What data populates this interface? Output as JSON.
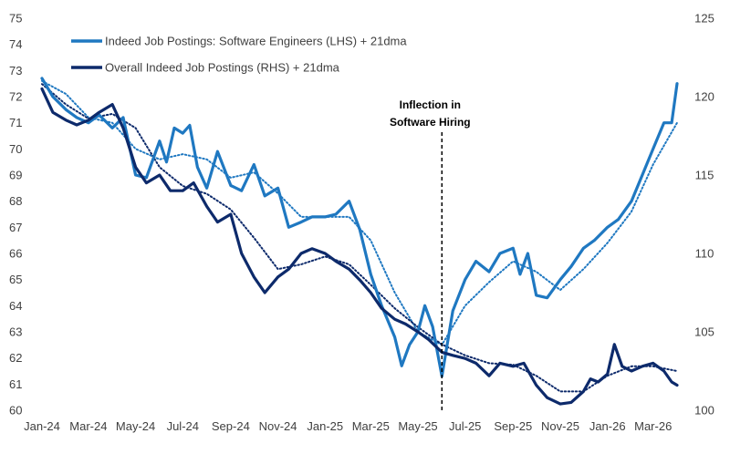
{
  "chart_data": {
    "type": "line",
    "title": "",
    "xlabel": "",
    "ylabel_left": "",
    "ylabel_right": "",
    "x_ticks": [
      "Jan-24",
      "Mar-24",
      "May-24",
      "Jul-24",
      "Sep-24",
      "Nov-24",
      "Jan-25",
      "Mar-25",
      "May-25",
      "Jul-25",
      "Sep-25",
      "Nov-25",
      "Jan-26",
      "Mar-26"
    ],
    "ylim_left": [
      60,
      75
    ],
    "yticks_left": [
      "60",
      "61",
      "62",
      "63",
      "64",
      "65",
      "66",
      "67",
      "68",
      "69",
      "70",
      "71",
      "72",
      "73",
      "74",
      "75"
    ],
    "ylim_right": [
      100,
      125
    ],
    "yticks_right": [
      "100",
      "105",
      "110",
      "115",
      "120",
      "125"
    ],
    "grid": false,
    "legend_position": "top-left",
    "annotation": {
      "lines": [
        "Inflection in",
        "Software Hiring"
      ],
      "x": "2025-06-01"
    },
    "series": [
      {
        "name": "Indeed Job Postings: Software Engineers (LHS) + 21dma",
        "axis": "left",
        "color": "#1f78c1",
        "x": [
          "2024-01-01",
          "2024-01-15",
          "2024-02-01",
          "2024-02-15",
          "2024-03-01",
          "2024-03-15",
          "2024-04-01",
          "2024-04-15",
          "2024-05-01",
          "2024-05-15",
          "2024-06-01",
          "2024-06-10",
          "2024-06-20",
          "2024-07-01",
          "2024-07-10",
          "2024-07-20",
          "2024-08-01",
          "2024-08-15",
          "2024-09-01",
          "2024-09-15",
          "2024-10-01",
          "2024-10-15",
          "2024-11-01",
          "2024-11-15",
          "2024-12-01",
          "2024-12-15",
          "2025-01-01",
          "2025-01-15",
          "2025-02-01",
          "2025-02-15",
          "2025-03-01",
          "2025-03-15",
          "2025-04-01",
          "2025-04-10",
          "2025-04-20",
          "2025-05-01",
          "2025-05-10",
          "2025-05-20",
          "2025-06-01",
          "2025-06-15",
          "2025-07-01",
          "2025-07-15",
          "2025-08-01",
          "2025-08-15",
          "2025-09-01",
          "2025-09-10",
          "2025-09-20",
          "2025-10-01",
          "2025-10-15",
          "2025-11-01",
          "2025-11-15",
          "2025-12-01",
          "2025-12-15",
          "2026-01-01",
          "2026-01-15",
          "2026-02-01",
          "2026-02-15",
          "2026-03-01",
          "2026-03-15",
          "2026-03-25",
          "2026-04-01"
        ],
        "y": [
          72.7,
          72.0,
          71.5,
          71.2,
          71.0,
          71.3,
          70.8,
          71.2,
          69.0,
          68.9,
          70.3,
          69.5,
          70.8,
          70.6,
          70.9,
          69.3,
          68.5,
          69.9,
          68.6,
          68.4,
          69.4,
          68.2,
          68.5,
          67.0,
          67.2,
          67.4,
          67.4,
          67.5,
          68.0,
          66.9,
          65.2,
          64.0,
          62.8,
          61.7,
          62.5,
          63.0,
          64.0,
          63.2,
          61.3,
          63.8,
          65.0,
          65.7,
          65.3,
          66.0,
          66.2,
          65.2,
          66.0,
          64.4,
          64.3,
          65.0,
          65.5,
          66.2,
          66.5,
          67.0,
          67.3,
          68.0,
          69.0,
          70.0,
          71.0,
          71.0,
          72.5
        ]
      },
      {
        "name": "Overall Indeed Job Postings (RHS) + 21dma",
        "axis": "right",
        "color": "#0d2a6b",
        "x": [
          "2024-01-01",
          "2024-01-15",
          "2024-02-01",
          "2024-02-15",
          "2024-03-01",
          "2024-03-15",
          "2024-04-01",
          "2024-04-15",
          "2024-05-01",
          "2024-05-15",
          "2024-06-01",
          "2024-06-15",
          "2024-07-01",
          "2024-07-15",
          "2024-08-01",
          "2024-08-15",
          "2024-09-01",
          "2024-09-15",
          "2024-10-01",
          "2024-10-15",
          "2024-11-01",
          "2024-11-15",
          "2024-12-01",
          "2024-12-15",
          "2025-01-01",
          "2025-01-15",
          "2025-02-01",
          "2025-02-15",
          "2025-03-01",
          "2025-03-15",
          "2025-04-01",
          "2025-04-15",
          "2025-05-01",
          "2025-05-15",
          "2025-06-01",
          "2025-06-15",
          "2025-07-01",
          "2025-07-15",
          "2025-08-01",
          "2025-08-15",
          "2025-09-01",
          "2025-09-15",
          "2025-10-01",
          "2025-10-15",
          "2025-11-01",
          "2025-11-15",
          "2025-12-01",
          "2025-12-10",
          "2025-12-20",
          "2026-01-01",
          "2026-01-10",
          "2026-01-20",
          "2026-02-01",
          "2026-02-15",
          "2026-03-01",
          "2026-03-15",
          "2026-03-25",
          "2026-04-01"
        ],
        "y": [
          120.5,
          119.0,
          118.5,
          118.2,
          118.5,
          119.0,
          119.5,
          118.0,
          115.5,
          114.5,
          115.0,
          114.0,
          114.0,
          114.5,
          113.0,
          112.0,
          112.5,
          110.0,
          108.5,
          107.5,
          108.5,
          109.0,
          110.0,
          110.3,
          110.0,
          109.5,
          109.0,
          108.3,
          107.5,
          106.5,
          105.8,
          105.5,
          105.0,
          104.5,
          103.7,
          103.5,
          103.3,
          103.0,
          102.2,
          103.0,
          102.8,
          103.0,
          101.6,
          100.8,
          100.4,
          100.5,
          101.2,
          102.0,
          101.8,
          102.3,
          104.2,
          102.8,
          102.5,
          102.8,
          103.0,
          102.5,
          101.8,
          101.6
        ]
      }
    ],
    "dotted_series": [
      {
        "name": "",
        "axis": "left",
        "color": "#1f78c1",
        "x": [
          "2024-01-01",
          "2024-02-01",
          "2024-03-01",
          "2024-04-01",
          "2024-05-01",
          "2024-06-01",
          "2024-07-01",
          "2024-08-01",
          "2024-09-01",
          "2024-10-01",
          "2024-11-01",
          "2024-12-01",
          "2025-01-01",
          "2025-02-01",
          "2025-03-01",
          "2025-04-01",
          "2025-05-01",
          "2025-06-01",
          "2025-07-01",
          "2025-08-01",
          "2025-09-01",
          "2025-10-01",
          "2025-11-01",
          "2025-12-01",
          "2026-01-01",
          "2026-02-01",
          "2026-03-01",
          "2026-04-01"
        ],
        "y": [
          72.6,
          72.1,
          71.2,
          71.0,
          70.0,
          69.6,
          69.8,
          69.6,
          68.9,
          69.1,
          68.3,
          67.4,
          67.4,
          67.4,
          66.5,
          64.5,
          63.0,
          62.5,
          64.0,
          64.9,
          65.7,
          65.3,
          64.6,
          65.4,
          66.4,
          67.6,
          69.4,
          71.0
        ]
      },
      {
        "name": "",
        "axis": "right",
        "color": "#0d2a6b",
        "x": [
          "2024-01-01",
          "2024-02-01",
          "2024-03-01",
          "2024-04-01",
          "2024-05-01",
          "2024-06-01",
          "2024-07-01",
          "2024-08-01",
          "2024-09-01",
          "2024-10-01",
          "2024-11-01",
          "2024-12-01",
          "2025-01-01",
          "2025-02-01",
          "2025-03-01",
          "2025-04-01",
          "2025-05-01",
          "2025-06-01",
          "2025-07-01",
          "2025-08-01",
          "2025-09-01",
          "2025-10-01",
          "2025-11-01",
          "2025-12-01",
          "2026-01-01",
          "2026-02-01",
          "2026-03-01",
          "2026-04-01"
        ],
        "y": [
          120.8,
          119.5,
          118.6,
          118.9,
          118.0,
          115.5,
          114.3,
          113.8,
          112.8,
          111.0,
          109.0,
          109.3,
          109.8,
          109.3,
          108.0,
          106.5,
          105.3,
          104.2,
          103.5,
          103.0,
          102.9,
          102.2,
          101.2,
          101.2,
          102.2,
          102.8,
          102.8,
          102.5
        ]
      }
    ]
  }
}
